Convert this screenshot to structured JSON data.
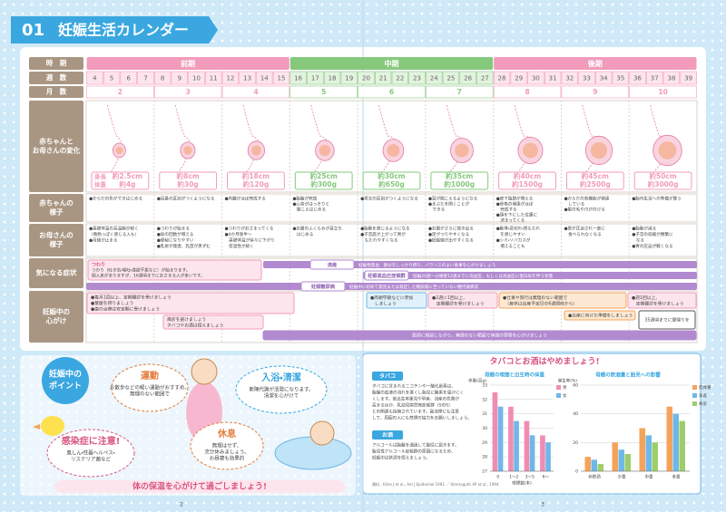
{
  "header": {
    "number": "01",
    "title": "妊娠生活カレンダー"
  },
  "calendar": {
    "row_labels": [
      [
        "時　期"
      ],
      [
        "週　数"
      ],
      [
        "月　数"
      ],
      [
        "赤ちゃんと",
        "お母さんの変化"
      ],
      [
        "赤ちゃんの",
        "様子"
      ],
      [
        "お母さんの",
        "様子"
      ],
      [
        "気になる症状"
      ],
      [
        "妊娠中の",
        "心がけ"
      ]
    ],
    "phases": [
      "前期",
      "中期",
      "後期"
    ],
    "weeks": [
      4,
      5,
      6,
      7,
      8,
      9,
      10,
      11,
      12,
      13,
      14,
      15,
      16,
      17,
      18,
      19,
      20,
      21,
      22,
      23,
      24,
      25,
      26,
      27,
      28,
      29,
      30,
      31,
      32,
      33,
      34,
      35,
      36,
      37,
      38,
      39
    ],
    "months": [
      2,
      3,
      4,
      5,
      6,
      7,
      8,
      9,
      10
    ],
    "size_labels": [
      "身長",
      "体重"
    ],
    "sizes": [
      [
        "約2.5cm",
        "約4g"
      ],
      [
        "約8cm",
        "約30g"
      ],
      [
        "約18cm",
        "約120g"
      ],
      [
        "約25cm",
        "約300g"
      ],
      [
        "約30cm",
        "約650g"
      ],
      [
        "約35cm",
        "約1000g"
      ],
      [
        "約40cm",
        "約1500g"
      ],
      [
        "約45cm",
        "約2500g"
      ],
      [
        "約50cm",
        "約3000g"
      ]
    ],
    "baby": [
      [
        "●からだの形ができはじめる"
      ],
      [
        "●目鼻の区別がつくようになる"
      ],
      [
        "●内臓がほぼ完成する"
      ],
      [
        "●胎盤が完成",
        "●心音がはっきりと",
        "　聞こえはじめる"
      ],
      [
        "●男女の区別がつくようになる"
      ],
      [
        "●耳が聞こえるようになる",
        "●まぶたを開くことが",
        "　できる"
      ],
      [
        "●皮下脂肪が増える",
        "●骨格の発達がほぼ",
        "　完成する",
        "●頭を下にした位置に",
        "　決まってくる"
      ],
      [
        "●からだの各機能が発達",
        "　している",
        "●髪の毛や爪がのびる"
      ],
      [
        "●胎外生活への準備が整う"
      ]
    ],
    "mother": [
      [
        "●基礎体温の高温期が続く",
        "（微熱っぽく感じる人も）",
        "●月経が止まる"
      ],
      [
        "●つわりが始まる",
        "●尿の回数が増える",
        "●便秘になりやすい",
        "●乳房が発達、乳首が黒ずむ"
      ],
      [
        "●つわりがおさまってくる",
        "●4か月後半〜",
        "　基礎体温が徐々に下がり",
        "　低温性が続く"
      ],
      [
        "●お腹のふくらみが目立ち",
        "　はじめる"
      ],
      [
        "●胎動を感じるようになる",
        "●子宮底が上がって胃が",
        "　もたれやすくなる"
      ],
      [
        "●お腹がさらに突き出る",
        "●足がつりやすくなる",
        "●妊娠線が出やすくなる"
      ],
      [
        "●動悸・息切れ・胃もたれ",
        "　を感じやすい",
        "●シミ・ソバカスが",
        "　増えることも"
      ],
      [
        "●胃が圧迫され一度に",
        "　食べられなくなる"
      ],
      [
        "●胎動が減る",
        "●子宮の収縮が頻繁に",
        "　なる",
        "●胃の圧迫が軽くなる"
      ]
    ],
    "symptoms": [
      {
        "label": "つわり",
        "text": [
          "つわり（吐き気・嘔吐・食欲不振など）が始まります。",
          "個人差がありますが、16週頃までにおさまる人が多いです。"
        ]
      },
      {
        "label": "流産",
        "text": [
          "妊娠性貧血　鉄分をしっかり摂り、バランスのよい食事を心がけましょう"
        ]
      },
      {
        "label": "妊娠高血圧症候群",
        "text": [
          "妊娠20週〜分娩後12週までに高血圧、もしくは高血圧に蛋白尿を伴う状態"
        ]
      },
      {
        "label": "妊娠糖尿病",
        "text": [
          "妊娠中に初めて発見または発症した糖尿病に至っていない糖代謝異常"
        ]
      }
    ],
    "tips": [
      [
        "●毎月1回以上、定期健診を受けましょう",
        "●葉酸を摂りましょう",
        "●歯の治療は安定期に受けましょう"
      ],
      [
        "風疹を避けましょう",
        "タバコやお酒は控えましょう"
      ],
      [
        "●両親学級などに参加",
        "　しましょう"
      ],
      [
        "●2週に1回以上、",
        "　定期健診を受けましょう"
      ],
      [
        "●仕事や旅行は無理のない範囲で",
        "　（産休は出産予定日の6週間前から）"
      ],
      [
        "●週1回以上、",
        "　定期健診を受けましょう"
      ],
      [
        "●出産に向けた準備をしましょう"
      ],
      [
        "35週頃までに里帰りを"
      ],
      [
        "医師に相談しながら、無理のない範囲で体調の管理を心がけましょう"
      ]
    ]
  },
  "points": {
    "title": [
      "妊娠中の",
      "ポイント"
    ],
    "items": [
      {
        "title": "運動",
        "text": [
          "お散歩などの軽い運動がおすすめ。",
          "無理のない範囲で"
        ]
      },
      {
        "title": "入浴・清潔",
        "text": [
          "新陳代謝が活発になります。",
          "清潔を心がけて"
        ]
      },
      {
        "title": "休息",
        "text": [
          "無理はせず、",
          "充分休みましょう。",
          "お昼寝も効果的"
        ]
      },
      {
        "title": "感染症に注意!",
        "text": [
          "風しん・性器ヘルペス・",
          "リステリア菌など"
        ]
      }
    ],
    "footer": "体の保温を心がけて過ごしましょう!"
  },
  "smoking": {
    "title": "タバコとお酒はやめましょう!",
    "tobacco": {
      "label": "タバコ",
      "text": [
        "タバコに含まれるニコチンや一酸化炭素は、",
        "胎盤の血液の流れを悪くし胎児に酸素を届けにく",
        "くします。低出生体重児や早産、流産の危険が",
        "高まるほか、乳幼児突然死症候群（SIDS）",
        "との関連も指摘されています。副流煙にも注意",
        "して、周囲の人にも禁煙の協力をお願いしましょう。"
      ]
    },
    "alcohol": {
      "label": "お酒",
      "text": [
        "アルコールは胎盤を通過して胎児に届きます。",
        "胎児性アルコール症候群の原因になるため、",
        "妊娠中は飲酒を控えましょう。"
      ]
    },
    "source": "資料：Kline J et al., Am J Epidemiol 1992 ／ Streissguth AP et al., 1994"
  },
  "charts": [
    {
      "type": "bar",
      "title": "母親の喫煙と出生時の体重",
      "y_label": "体重(百g)",
      "x_label": "喫煙数(本)",
      "categories": [
        "0",
        "1〜2",
        "3〜5",
        "6〜"
      ],
      "series": [
        {
          "name": "男",
          "color": "#f08cb4",
          "values": [
            32.5,
            31.5,
            30.5,
            29.5
          ]
        },
        {
          "name": "女",
          "color": "#6fb7e8",
          "values": [
            31.5,
            30.5,
            29.5,
            29
          ]
        }
      ],
      "ylim": [
        27,
        33
      ],
      "yticks": [
        27,
        28,
        29,
        30,
        31,
        32,
        33
      ]
    },
    {
      "type": "bar",
      "title": "母親の飲酒量と胎児への影響",
      "y_label": "発生率(%)",
      "categories": [
        "非飲酒",
        "少量",
        "中量",
        "多量"
      ],
      "series": [
        {
          "name": "低体重",
          "color": "#f5a35a",
          "values": [
            10,
            20,
            30,
            45
          ]
        },
        {
          "name": "早産",
          "color": "#6fb7e8",
          "values": [
            8,
            15,
            25,
            40
          ]
        },
        {
          "name": "奇形",
          "color": "#9ccf6a",
          "values": [
            5,
            12,
            20,
            35
          ]
        }
      ],
      "ylim": [
        0,
        60
      ],
      "yticks": [
        0,
        20,
        40,
        60
      ]
    }
  ],
  "page_numbers": [
    "2",
    "3"
  ]
}
